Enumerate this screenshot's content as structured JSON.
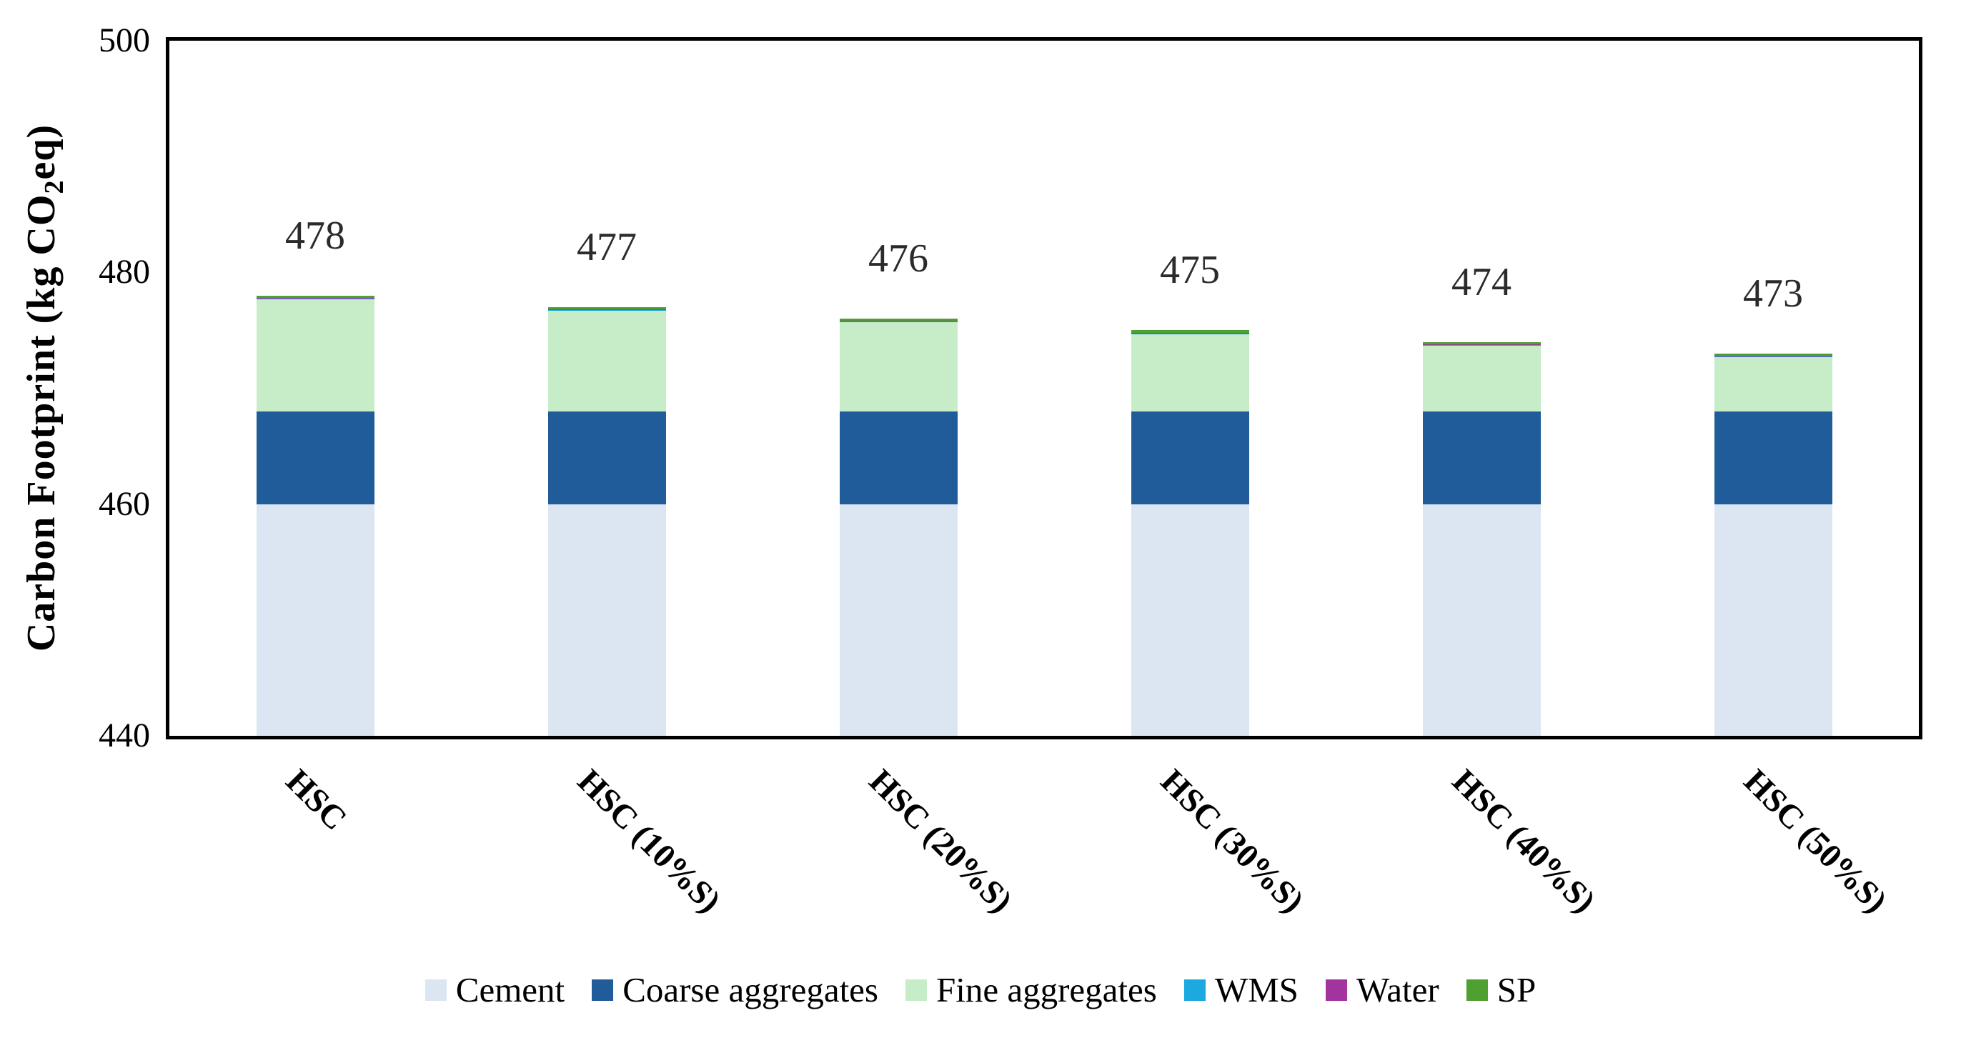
{
  "chart_data": {
    "type": "bar",
    "subtype": "stacked",
    "title": "",
    "ylabel_prefix": "Carbon Footprint (kg CO",
    "ylabel_sub": "2",
    "ylabel_suffix": "eq)",
    "xlabel": "",
    "ylim": [
      440,
      500
    ],
    "yticks": [
      "440",
      "460",
      "480",
      "500"
    ],
    "grid": false,
    "legend_position": "bottom",
    "categories": [
      "HSC",
      "HSC (10%S)",
      "HSC (20%S)",
      "HSC (30%S)",
      "HSC (40%S)",
      "HSC (50%S)"
    ],
    "bar_totals": [
      "478",
      "477",
      "476",
      "475",
      "474",
      "473"
    ],
    "series": [
      {
        "name": "Cement",
        "color": "#dce6f2",
        "values": [
          460,
          460,
          460,
          460,
          460,
          460
        ]
      },
      {
        "name": "Coarse aggregates",
        "color": "#1f5c99",
        "values": [
          8,
          8,
          8,
          8,
          8,
          8
        ]
      },
      {
        "name": "Fine aggregates",
        "color": "#c7ecc8",
        "values": [
          9.7,
          8.7,
          7.7,
          6.7,
          5.7,
          4.7
        ]
      },
      {
        "name": "WMS",
        "color": "#1ca9df",
        "values": [
          0.04,
          0.04,
          0.04,
          0.04,
          0.04,
          0.04
        ]
      },
      {
        "name": "Water",
        "color": "#a3349e",
        "values": [
          0.06,
          0.06,
          0.06,
          0.06,
          0.06,
          0.06
        ]
      },
      {
        "name": "SP",
        "color": "#4f9f31",
        "values": [
          0.2,
          0.2,
          0.2,
          0.2,
          0.2,
          0.2
        ]
      }
    ]
  }
}
